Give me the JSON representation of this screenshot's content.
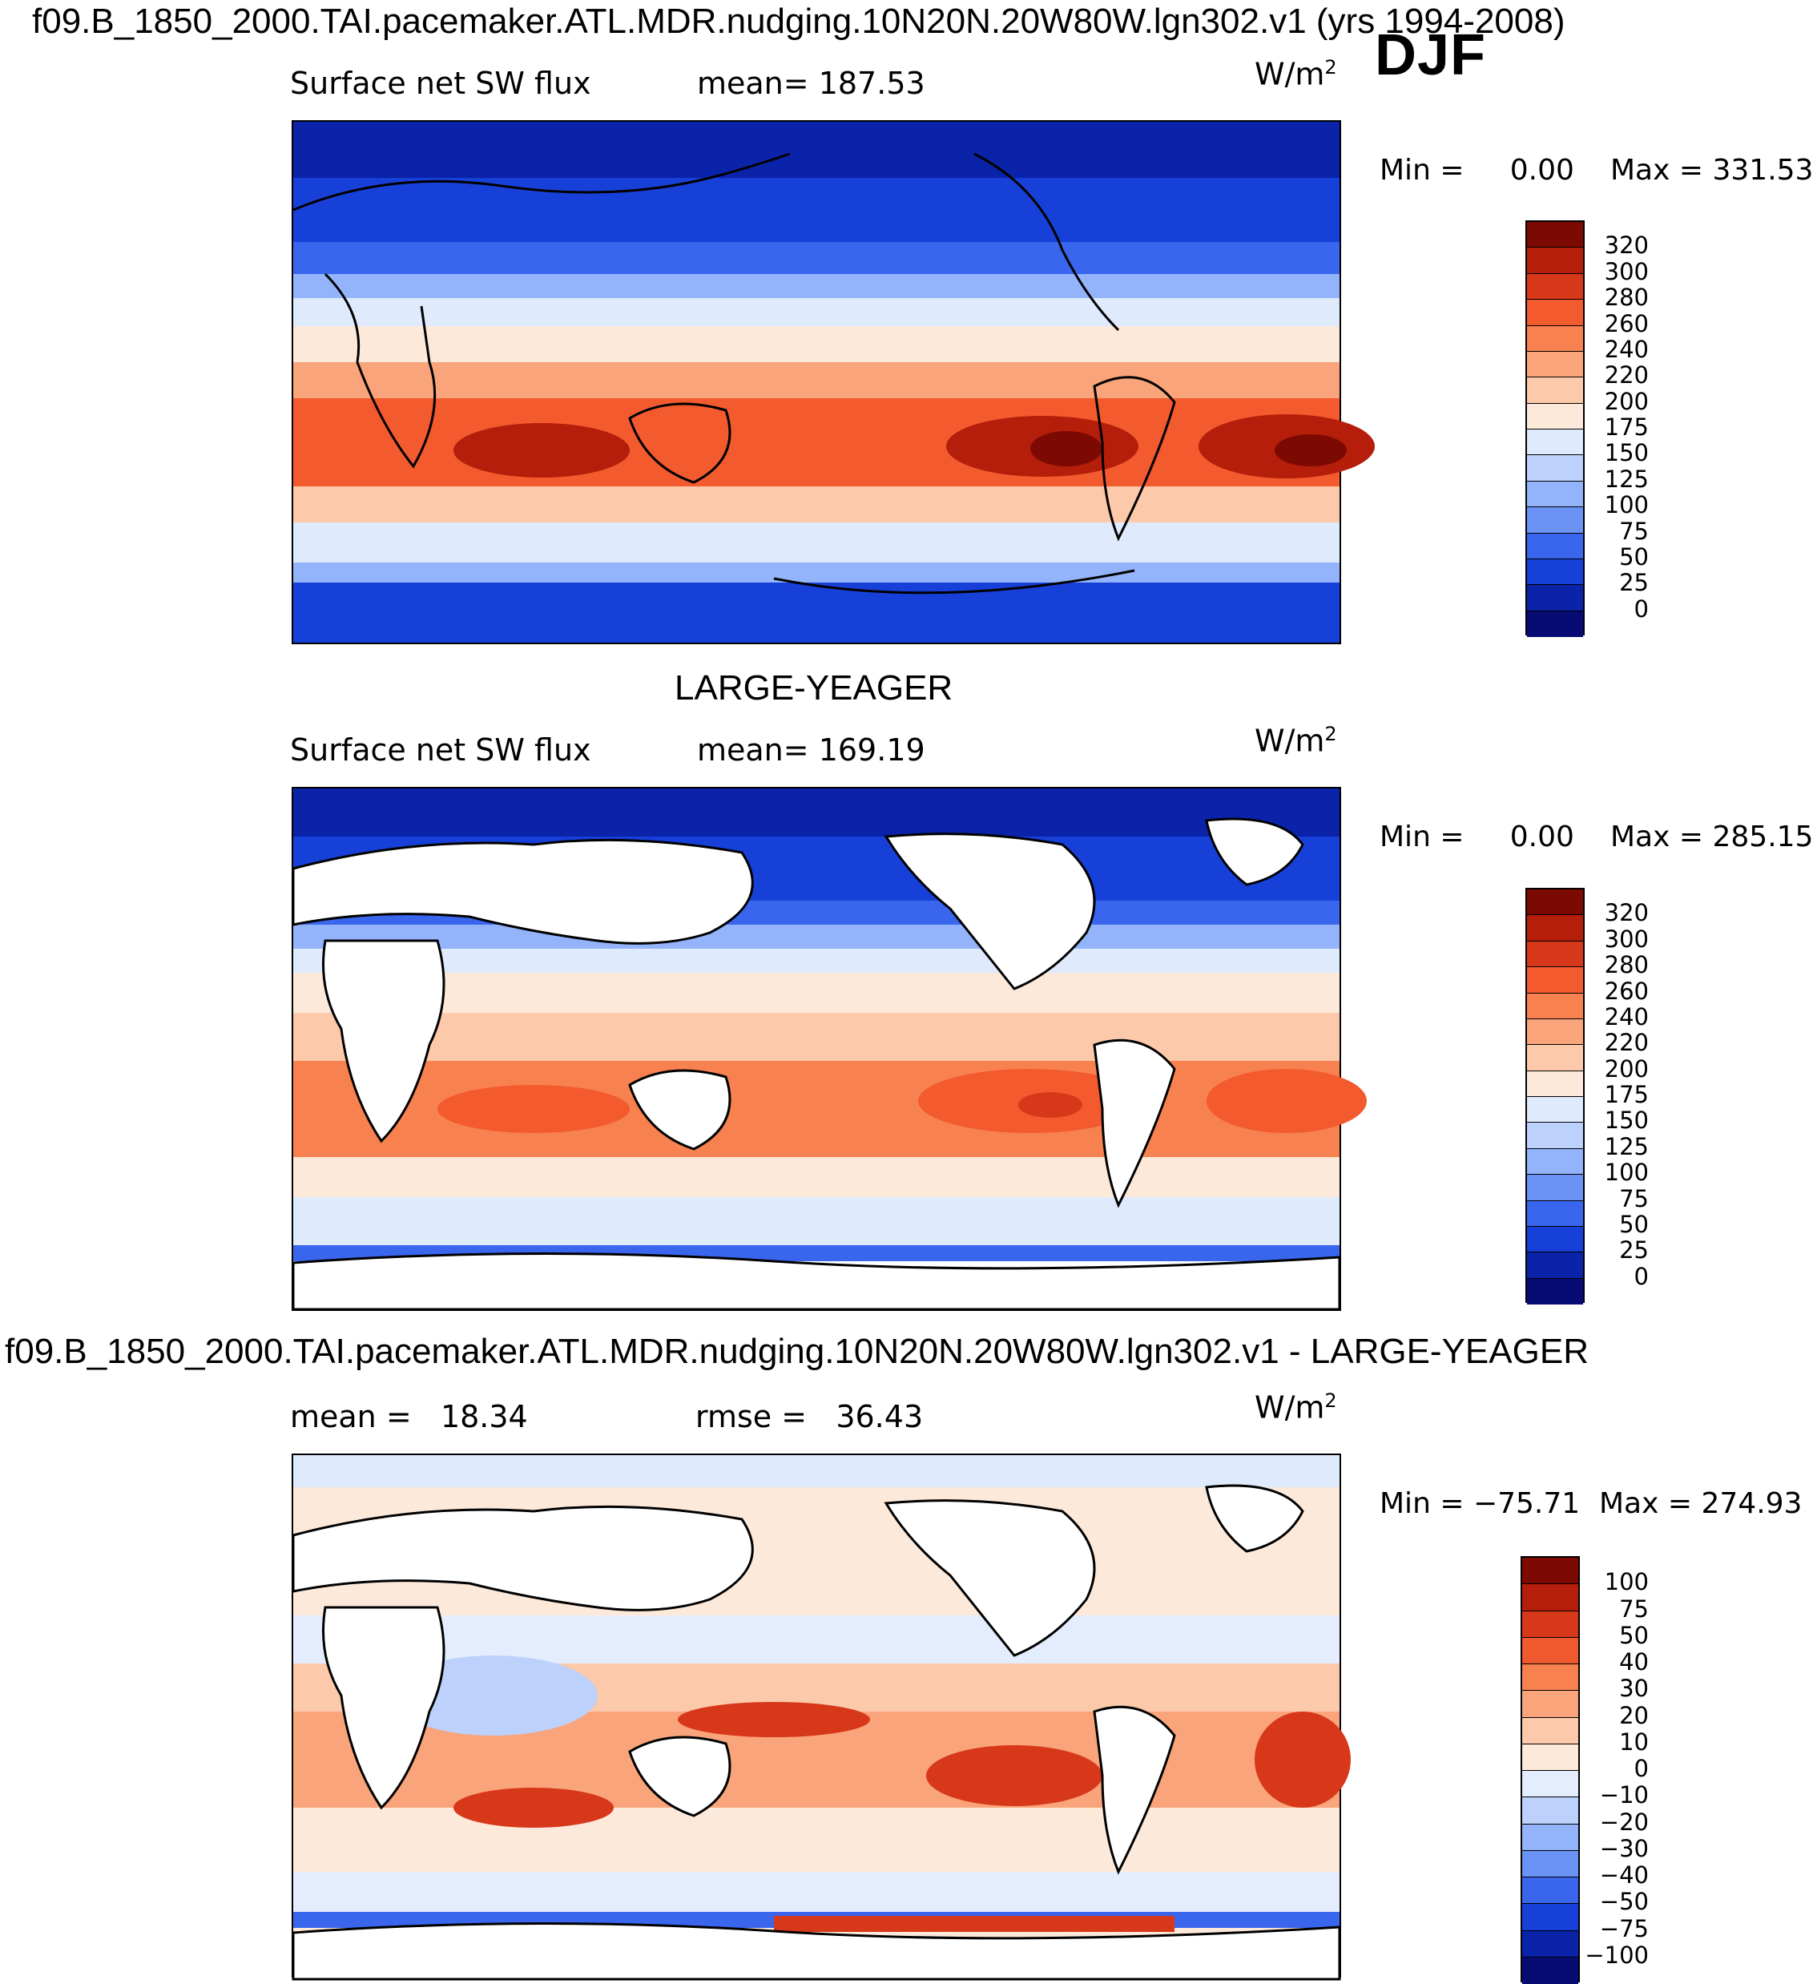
{
  "header": {
    "main_title": "f09.B_1850_2000.TAI.pacemaker.ATL.MDR.nudging.10N20N.20W80W.lgn302.v1 (yrs 1994-2008)",
    "season": "DJF"
  },
  "colors": {
    "cool": [
      "#0b0f7a",
      "#0a1ea8",
      "#0f34d2",
      "#1f55ee",
      "#4b80f6",
      "#7ea5fa",
      "#a8c4fb",
      "#cfdffc",
      "#e6efff"
    ],
    "warm": [
      "#fde8d8",
      "#fbd0b6",
      "#fbb08c",
      "#f98a60",
      "#f5683e",
      "#e94a23",
      "#cf2e12",
      "#ad1a09",
      "#7d0a02"
    ]
  },
  "chart_data": [
    {
      "type": "heatmap",
      "panel": "top",
      "title": "f09.B_1850_2000.TAI.pacemaker.ATL.MDR.nudging.10N20N.20W80W.lgn302.v1 (yrs 1994-2008)",
      "variable": "Surface net SW flux",
      "mean_label": "mean=",
      "mean": "187.53",
      "units": "W/m",
      "units_sup": "2",
      "min_label": "Min =",
      "min": "0.00",
      "max_label": "Max =",
      "max": "331.53",
      "colorbar_levels": [
        "320",
        "300",
        "280",
        "260",
        "240",
        "220",
        "200",
        "175",
        "150",
        "125",
        "100",
        "75",
        "50",
        "25",
        "0"
      ],
      "colorbar_colors": [
        "#7d0a02",
        "#b41e0a",
        "#d8381a",
        "#f35a2e",
        "#f7814f",
        "#f9a47a",
        "#fcc9aa",
        "#fde9da",
        "#dfeafd",
        "#bcd1fc",
        "#93b4fa",
        "#6a93f5",
        "#3a66ee",
        "#1740d8",
        "#0a23a8",
        "#070b74"
      ]
    },
    {
      "type": "heatmap",
      "panel": "middle",
      "title": "LARGE-YEAGER",
      "variable": "Surface net SW flux",
      "mean_label": "mean=",
      "mean": "169.19",
      "units": "W/m",
      "units_sup": "2",
      "min_label": "Min =",
      "min": "0.00",
      "max_label": "Max =",
      "max": "285.15",
      "colorbar_levels": [
        "320",
        "300",
        "280",
        "260",
        "240",
        "220",
        "200",
        "175",
        "150",
        "125",
        "100",
        "75",
        "50",
        "25",
        "0"
      ],
      "colorbar_colors": [
        "#7d0a02",
        "#b41e0a",
        "#d8381a",
        "#f35a2e",
        "#f7814f",
        "#f9a47a",
        "#fcc9aa",
        "#fde9da",
        "#dfeafd",
        "#bcd1fc",
        "#93b4fa",
        "#6a93f5",
        "#3a66ee",
        "#1740d8",
        "#0a23a8",
        "#070b74"
      ]
    },
    {
      "type": "heatmap",
      "panel": "bottom",
      "title": "f09.B_1850_2000.TAI.pacemaker.ATL.MDR.nudging.10N20N.20W80W.lgn302.v1 - LARGE-YEAGER",
      "mean_label": "mean =",
      "mean": "18.34",
      "rmse_label": "rmse =",
      "rmse": "36.43",
      "units": "W/m",
      "units_sup": "2",
      "min_label": "Min =",
      "min": "−75.71",
      "max_label": "Max =",
      "max": "274.93",
      "colorbar_levels": [
        "100",
        "75",
        "50",
        "40",
        "30",
        "20",
        "10",
        "0",
        "−10",
        "−20",
        "−30",
        "−40",
        "−50",
        "−75",
        "−100"
      ],
      "colorbar_colors": [
        "#7d0a02",
        "#b41e0a",
        "#d8381a",
        "#ee5a2e",
        "#f7814f",
        "#f9a47a",
        "#fcc9aa",
        "#fde9da",
        "#e4edfd",
        "#bcd1fc",
        "#93b4fa",
        "#6a93f5",
        "#3a66ee",
        "#1740d8",
        "#0a23a8",
        "#070b74"
      ]
    }
  ]
}
